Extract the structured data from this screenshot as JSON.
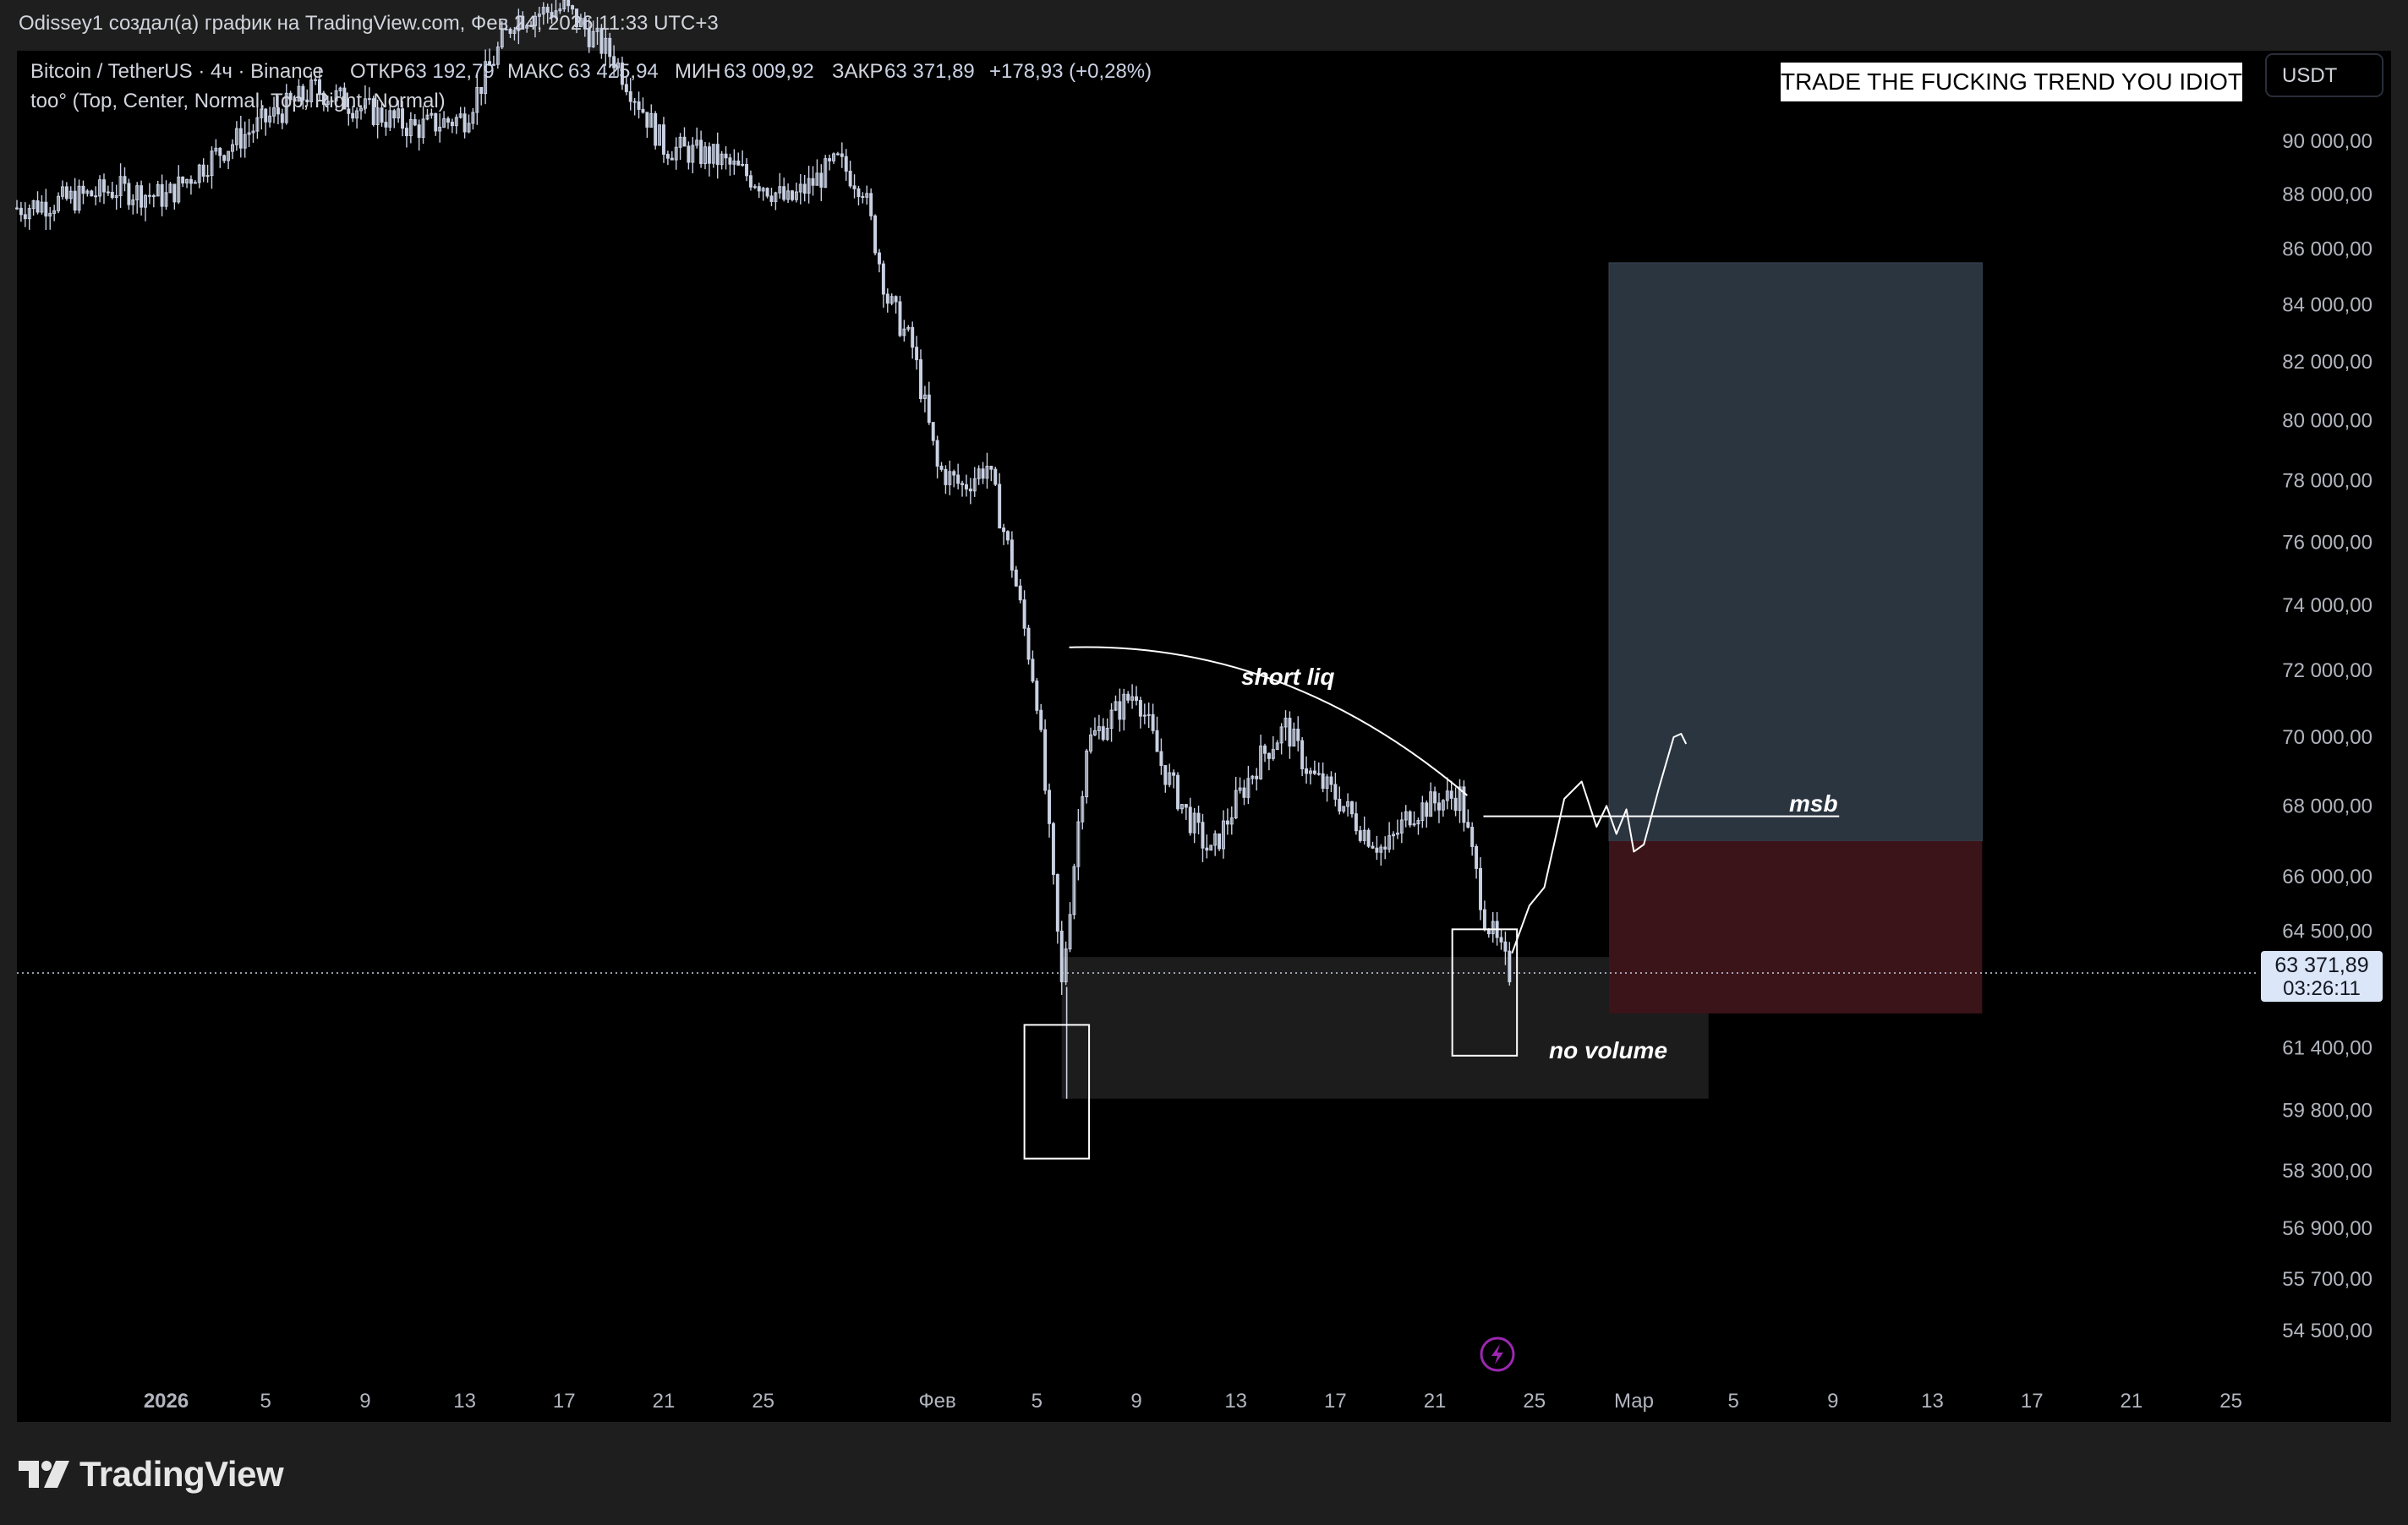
{
  "header": {
    "attribution": "Odissey1 создал(а) график на TradingView.com, Фев 24, 2026 11:33 UTC+3"
  },
  "legend": {
    "symbol": "Bitcoin / TetherUS · 4ч · Binance",
    "open_label": "ОТКР",
    "open_value": "63 192,79",
    "high_label": "МАКС",
    "high_value": "63 425,94",
    "low_label": "МИН",
    "low_value": "63 009,92",
    "close_label": "ЗАКР",
    "close_value": "63 371,89",
    "change": "+178,93 (+0,28%)",
    "indicator": "too° (Top, Center, Normal, Top, Right, Normal)"
  },
  "currency_button": "USDT",
  "banner_text": "TRADE THE FUCKING TREND YOU IDIOT",
  "price_badge": {
    "price": "63 371,89",
    "countdown": "03:26:11"
  },
  "annotations": {
    "short_liq": "short liq",
    "msb": "msb",
    "no_volume": "no volume"
  },
  "footer": {
    "brand": "TradingView"
  },
  "colors": {
    "background": "#000000",
    "frame": "#1e1e1e",
    "candles": "#c9d1e3",
    "text": "#d1d4dc",
    "axis_text": "#b2b5be",
    "target_zone": "#2b3540",
    "stop_zone": "#3a1418",
    "price_badge_bg": "#dbe6f8"
  },
  "chart_data": {
    "type": "candlestick",
    "y_scale": "log",
    "y_ticks": [
      "90 000,00",
      "88 000,00",
      "86 000,00",
      "84 000,00",
      "82 000,00",
      "80 000,00",
      "78 000,00",
      "76 000,00",
      "74 000,00",
      "72 000,00",
      "70 000,00",
      "68 000,00",
      "66 000,00",
      "64 500,00",
      "61 400,00",
      "59 800,00",
      "58 300,00",
      "56 900,00",
      "55 700,00",
      "54 500,00"
    ],
    "y_tick_values": [
      90000,
      88000,
      86000,
      84000,
      82000,
      80000,
      78000,
      76000,
      74000,
      72000,
      70000,
      68000,
      66000,
      64500,
      61400,
      59800,
      58300,
      56900,
      55700,
      54500
    ],
    "x_ticks": [
      {
        "label": "2026",
        "date": "2026-01-01",
        "bold": true
      },
      {
        "label": "5",
        "date": "2026-01-05"
      },
      {
        "label": "9",
        "date": "2026-01-09"
      },
      {
        "label": "13",
        "date": "2026-01-13"
      },
      {
        "label": "17",
        "date": "2026-01-17"
      },
      {
        "label": "21",
        "date": "2026-01-21"
      },
      {
        "label": "25",
        "date": "2026-01-25"
      },
      {
        "label": "Фев",
        "date": "2026-02-01"
      },
      {
        "label": "5",
        "date": "2026-02-05"
      },
      {
        "label": "9",
        "date": "2026-02-09"
      },
      {
        "label": "13",
        "date": "2026-02-13"
      },
      {
        "label": "17",
        "date": "2026-02-17"
      },
      {
        "label": "21",
        "date": "2026-02-21"
      },
      {
        "label": "25",
        "date": "2026-02-25"
      },
      {
        "label": "Мар",
        "date": "2026-03-01"
      },
      {
        "label": "5",
        "date": "2026-03-05"
      },
      {
        "label": "9",
        "date": "2026-03-09"
      },
      {
        "label": "13",
        "date": "2026-03-13"
      },
      {
        "label": "17",
        "date": "2026-03-17"
      },
      {
        "label": "21",
        "date": "2026-03-21"
      },
      {
        "label": "25",
        "date": "2026-03-25"
      }
    ],
    "x_range": [
      "2025-12-26",
      "2026-03-26"
    ],
    "y_range": [
      53500,
      93500
    ],
    "current_price": 63371.89,
    "price_path": [
      [
        "2025-12-26",
        87500
      ],
      [
        "2025-12-28",
        87800
      ],
      [
        "2025-12-30",
        88200
      ],
      [
        "2026-01-01",
        87900
      ],
      [
        "2026-01-03",
        89500
      ],
      [
        "2026-01-05",
        90800
      ],
      [
        "2026-01-07",
        92000
      ],
      [
        "2026-01-09",
        91200
      ],
      [
        "2026-01-11",
        90500
      ],
      [
        "2026-01-13",
        90900
      ],
      [
        "2026-01-15",
        94800
      ],
      [
        "2026-01-17",
        95200
      ],
      [
        "2026-01-19",
        93200
      ],
      [
        "2026-01-21",
        89800
      ],
      [
        "2026-01-23",
        89400
      ],
      [
        "2026-01-25",
        88400
      ],
      [
        "2026-01-26",
        87700
      ],
      [
        "2026-01-28",
        89200
      ],
      [
        "2026-01-29",
        88300
      ],
      [
        "2026-01-30",
        84200
      ],
      [
        "2026-01-31",
        82500
      ],
      [
        "2026-02-01",
        78400
      ],
      [
        "2026-02-02",
        77800
      ],
      [
        "2026-02-03",
        78500
      ],
      [
        "2026-02-04",
        75300
      ],
      [
        "2026-02-05",
        71200
      ],
      [
        "2026-02-06",
        63000
      ],
      [
        "2026-02-07",
        69800
      ],
      [
        "2026-02-08",
        70600
      ],
      [
        "2026-02-09",
        71400
      ],
      [
        "2026-02-10",
        69200
      ],
      [
        "2026-02-11",
        67800
      ],
      [
        "2026-02-12",
        66600
      ],
      [
        "2026-02-13",
        68100
      ],
      [
        "2026-02-14",
        69400
      ],
      [
        "2026-02-15",
        70300
      ],
      [
        "2026-02-16",
        68900
      ],
      [
        "2026-02-17",
        68300
      ],
      [
        "2026-02-18",
        67400
      ],
      [
        "2026-02-19",
        66700
      ],
      [
        "2026-02-20",
        67800
      ],
      [
        "2026-02-21",
        68100
      ],
      [
        "2026-02-22",
        68300
      ],
      [
        "2026-02-23",
        64900
      ],
      [
        "2026-02-24",
        63372
      ]
    ],
    "low_extreme": {
      "date": "2026-02-06",
      "price": 60100
    },
    "target_zone": {
      "from": "2026-02-28",
      "to": "2026-03-15",
      "low": 67000,
      "high": 85500
    },
    "stop_zone": {
      "from": "2026-02-28",
      "to": "2026-03-15",
      "low": 62300,
      "high": 67000
    },
    "gray_zone": {
      "from": "2026-02-06",
      "to": "2026-03-04",
      "low": 60100,
      "high": 63800
    },
    "msb_level": {
      "price": 67700,
      "from": "2026-02-22",
      "to": "2026-03-10"
    },
    "box_left": {
      "from": "2026-02-04.5",
      "to": "2026-02-07.1",
      "low": 58600,
      "high": 62000
    },
    "box_right": {
      "from": "2026-02-21.7",
      "to": "2026-02-24.3",
      "low": 61200,
      "high": 64550
    }
  }
}
